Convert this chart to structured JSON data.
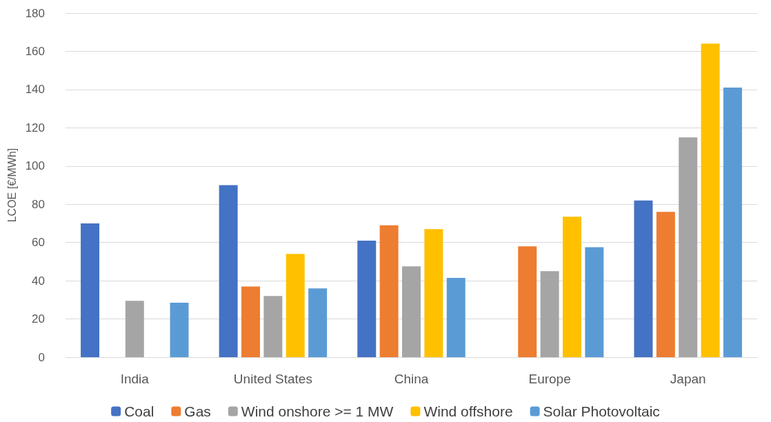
{
  "chart_data": {
    "type": "bar",
    "ylabel": "LCOE [€/MWh]",
    "categories": [
      "India",
      "United States",
      "China",
      "Europe",
      "Japan"
    ],
    "series": [
      {
        "name": "Coal",
        "color": "#4472c4",
        "values": [
          70,
          90,
          61,
          null,
          82
        ]
      },
      {
        "name": "Gas",
        "color": "#ed7d31",
        "values": [
          null,
          37,
          69,
          58,
          76
        ]
      },
      {
        "name": "Wind onshore >= 1 MW",
        "color": "#a5a5a5",
        "values": [
          29.5,
          32,
          47.5,
          45,
          115
        ]
      },
      {
        "name": "Wind offshore",
        "color": "#ffc000",
        "values": [
          null,
          54,
          67,
          73.5,
          164
        ]
      },
      {
        "name": "Solar Photovoltaic",
        "color": "#5b9bd5",
        "values": [
          28.5,
          36,
          41.5,
          57.5,
          141
        ]
      }
    ],
    "ylim": [
      0,
      180
    ],
    "yticks": [
      0,
      20,
      40,
      60,
      80,
      100,
      120,
      140,
      160,
      180
    ],
    "grid": "y",
    "legend": "bottom"
  }
}
